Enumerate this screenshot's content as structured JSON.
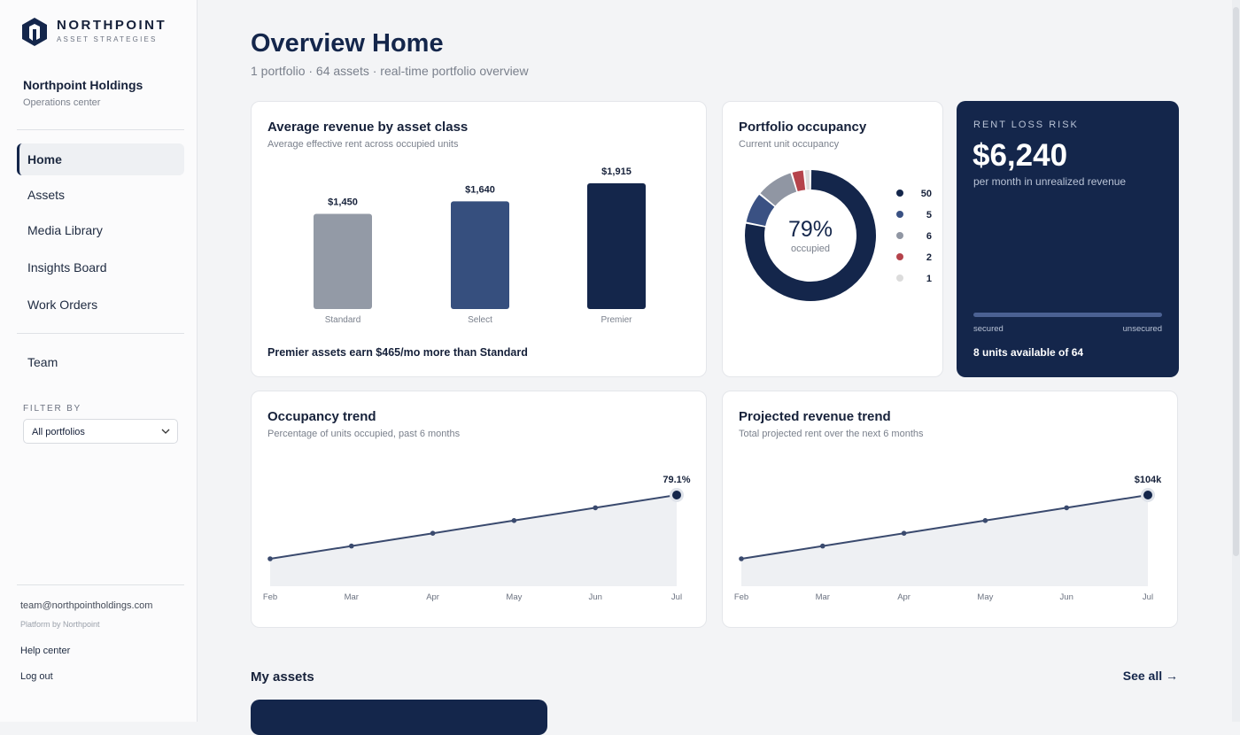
{
  "sidebar": {
    "brand": "NORTHPOINT",
    "brand_sub": "ASSET STRATEGIES",
    "org": "Northpoint Holdings",
    "org_sub": "Operations center",
    "nav": [
      "Home",
      "Assets",
      "Media Library",
      "Insights Board",
      "Work Orders"
    ],
    "team": "Team",
    "filter_label": "FILTER BY",
    "filter_value": "All portfolios",
    "email": "team@northpointholdings.com",
    "platform": "Platform by Northpoint",
    "help": "Help center",
    "logout": "Log out"
  },
  "header": {
    "title": "Overview Home",
    "subtitle": "1 portfolio · 64 assets · real-time portfolio overview"
  },
  "chart_data": [
    {
      "type": "bar",
      "title": "Average revenue by asset class",
      "subtitle": "Average effective rent across occupied units",
      "categories": [
        "Standard",
        "Select",
        "Premier"
      ],
      "values": [
        1450,
        1640,
        1915
      ],
      "value_labels": [
        "$1,450",
        "$1,640",
        "$1,915"
      ],
      "colors": [
        "#939aa6",
        "#364f7e",
        "#14264b"
      ],
      "note": "Premier assets earn $465/mo more than Standard"
    },
    {
      "type": "donut",
      "title": "Portfolio occupancy",
      "subtitle": "Current unit occupancy",
      "values": [
        50,
        5,
        6,
        2,
        1
      ],
      "colors": [
        "#14264b",
        "#3a5183",
        "#9096a3",
        "#b5434b",
        "#dcdcdc"
      ],
      "center_label": "79%",
      "center_sub": "occupied"
    },
    {
      "type": "line",
      "title": "Occupancy trend",
      "subtitle": "Percentage of units occupied, past 6 months",
      "categories": [
        "Feb",
        "Mar",
        "Apr",
        "May",
        "Jun",
        "Jul"
      ],
      "values": [
        74.1,
        75.1,
        76.1,
        77.1,
        78.1,
        79.1
      ],
      "value_labels": [
        null,
        null,
        null,
        null,
        null,
        "79.1%"
      ],
      "color": "#3a4a6e"
    },
    {
      "type": "line",
      "title": "Projected revenue trend",
      "subtitle": "Total projected rent over the next 6 months",
      "categories": [
        "Feb",
        "Mar",
        "Apr",
        "May",
        "Jun",
        "Jul"
      ],
      "values": [
        96,
        97.6,
        99.2,
        100.8,
        102.4,
        104
      ],
      "value_labels": [
        null,
        null,
        null,
        null,
        null,
        "$104k"
      ],
      "color": "#3a4a6e"
    }
  ],
  "risk": {
    "label": "RENT LOSS RISK",
    "value": "$6,240",
    "sub": "per month in unrealized revenue",
    "left": "secured",
    "right": "unsecured",
    "footer": "8 units available of 64"
  },
  "assets": {
    "title": "My assets",
    "see_all": "See all →"
  }
}
